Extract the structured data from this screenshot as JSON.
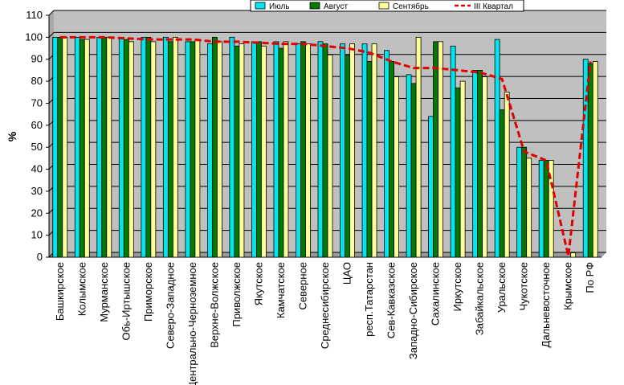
{
  "chart_data": {
    "type": "bar",
    "ylabel": "%",
    "ylim": [
      0,
      110
    ],
    "yticks": [
      0,
      10,
      20,
      30,
      40,
      50,
      60,
      70,
      80,
      90,
      100,
      110
    ],
    "grid": true,
    "legend_position": "top-right",
    "categories": [
      "Башкирское",
      "Колымское",
      "Мурманское",
      "Обь-Иртышское",
      "Приморское",
      "Северо-Западное",
      "Центрально-Черноземное",
      "Верхне-Волжское",
      "Приволжское",
      "Якутское",
      "Камчатское",
      "Северное",
      "Среднесибирское",
      "ЦАО",
      "респ.Татарстан",
      "Сев-Кавказское",
      "Западно-Сибирское",
      "Сахалинское",
      "Иркутское",
      "Забайкальское",
      "Уральское",
      "Чукотское",
      "Дальневосточное",
      "Крымское",
      "По РФ"
    ],
    "series": [
      {
        "name": "Июль",
        "color": "#00e5ee",
        "values": [
          100,
          100,
          100,
          100,
          100,
          100,
          98,
          97,
          100,
          98,
          98,
          97,
          98,
          97,
          97,
          94,
          83,
          64,
          96,
          85,
          99,
          50,
          44,
          0,
          90
        ]
      },
      {
        "name": "Август",
        "color": "#007a00",
        "values": [
          100,
          99,
          100,
          99,
          100,
          98,
          98,
          100,
          96,
          98,
          95,
          98,
          97,
          92,
          89,
          89,
          79,
          98,
          77,
          85,
          67,
          50,
          44,
          0,
          88
        ]
      },
      {
        "name": "Сентябрь",
        "color": "#ffff99",
        "values": [
          100,
          99,
          100,
          98,
          98,
          100,
          99,
          98,
          97,
          96,
          98,
          97,
          92,
          97,
          97,
          82,
          100,
          98,
          80,
          82,
          75,
          45,
          44,
          2,
          89
        ]
      }
    ],
    "line": {
      "name": "III Квартал",
      "color": "#e00000",
      "values": [
        100,
        100,
        100,
        99.5,
        99,
        99,
        99,
        98,
        98,
        97.5,
        97,
        97,
        96,
        95,
        93,
        89,
        86,
        86,
        85,
        84,
        81,
        48,
        44,
        0.5,
        89
      ]
    }
  }
}
